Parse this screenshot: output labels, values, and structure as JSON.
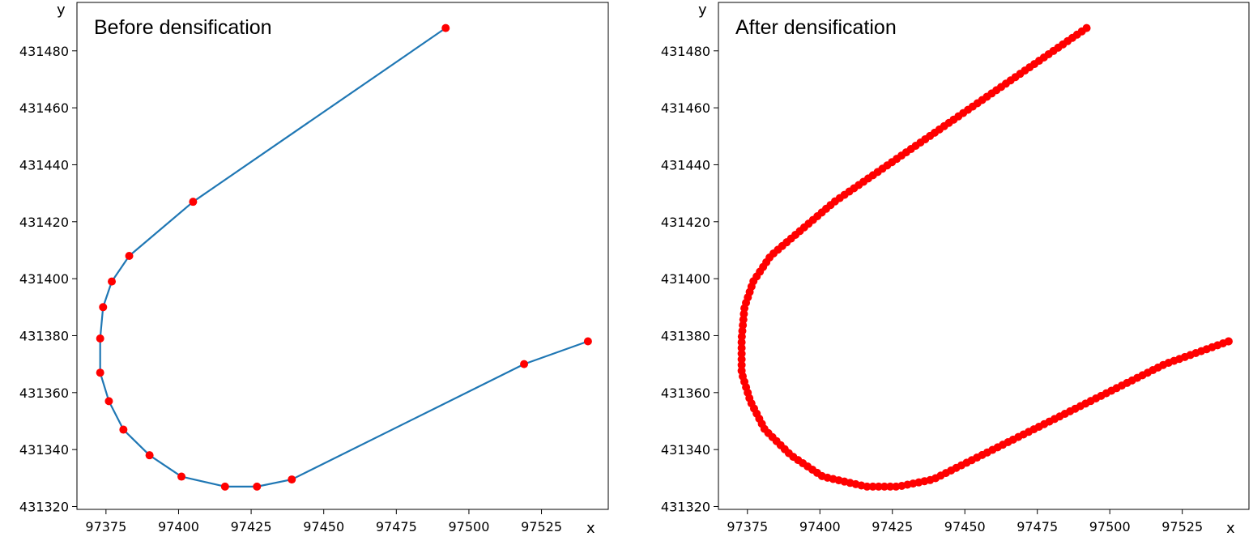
{
  "chart_data": [
    {
      "type": "line",
      "title": "Before densification",
      "xlabel": "x",
      "ylabel": "y",
      "xlim": [
        97365,
        97548
      ],
      "ylim": [
        431319,
        431497
      ],
      "xticks": [
        97375,
        97400,
        97425,
        97450,
        97475,
        97500,
        97525
      ],
      "yticks": [
        431320,
        431340,
        431360,
        431380,
        431400,
        431420,
        431440,
        431460,
        431480
      ],
      "grid": false,
      "line_color": "#1f77b4",
      "marker_color": "#ff0000",
      "series": [
        {
          "x": [
            97492,
            97405,
            97383,
            97377,
            97374,
            97373,
            97373,
            97376,
            97381,
            97390,
            97401,
            97416,
            97427,
            97439,
            97519,
            97541
          ],
          "y": [
            431488,
            431427,
            431408,
            431399,
            431390,
            431379,
            431367,
            431357,
            431347,
            431338,
            431330.5,
            431327,
            431327,
            431329.5,
            431370,
            431378
          ]
        }
      ]
    },
    {
      "type": "line",
      "title": "After densification",
      "xlabel": "x",
      "ylabel": "y",
      "xlim": [
        97365,
        97548
      ],
      "ylim": [
        431319,
        431497
      ],
      "xticks": [
        97375,
        97400,
        97425,
        97450,
        97475,
        97500,
        97525
      ],
      "yticks": [
        431320,
        431340,
        431360,
        431380,
        431400,
        431420,
        431440,
        431460,
        431480
      ],
      "grid": false,
      "line_color": "#1f77b4",
      "marker_color": "#ff0000",
      "series": [
        {
          "x": [
            97492,
            97405,
            97383,
            97377,
            97374,
            97373,
            97373,
            97376,
            97381,
            97390,
            97401,
            97416,
            97427,
            97439,
            97519,
            97541
          ],
          "y": [
            431488,
            431427,
            431408,
            431399,
            431390,
            431379,
            431367,
            431357,
            431347,
            431338,
            431330.5,
            431327,
            431327,
            431329.5,
            431370,
            431378
          ],
          "marker_spacing": 2
        }
      ]
    }
  ]
}
